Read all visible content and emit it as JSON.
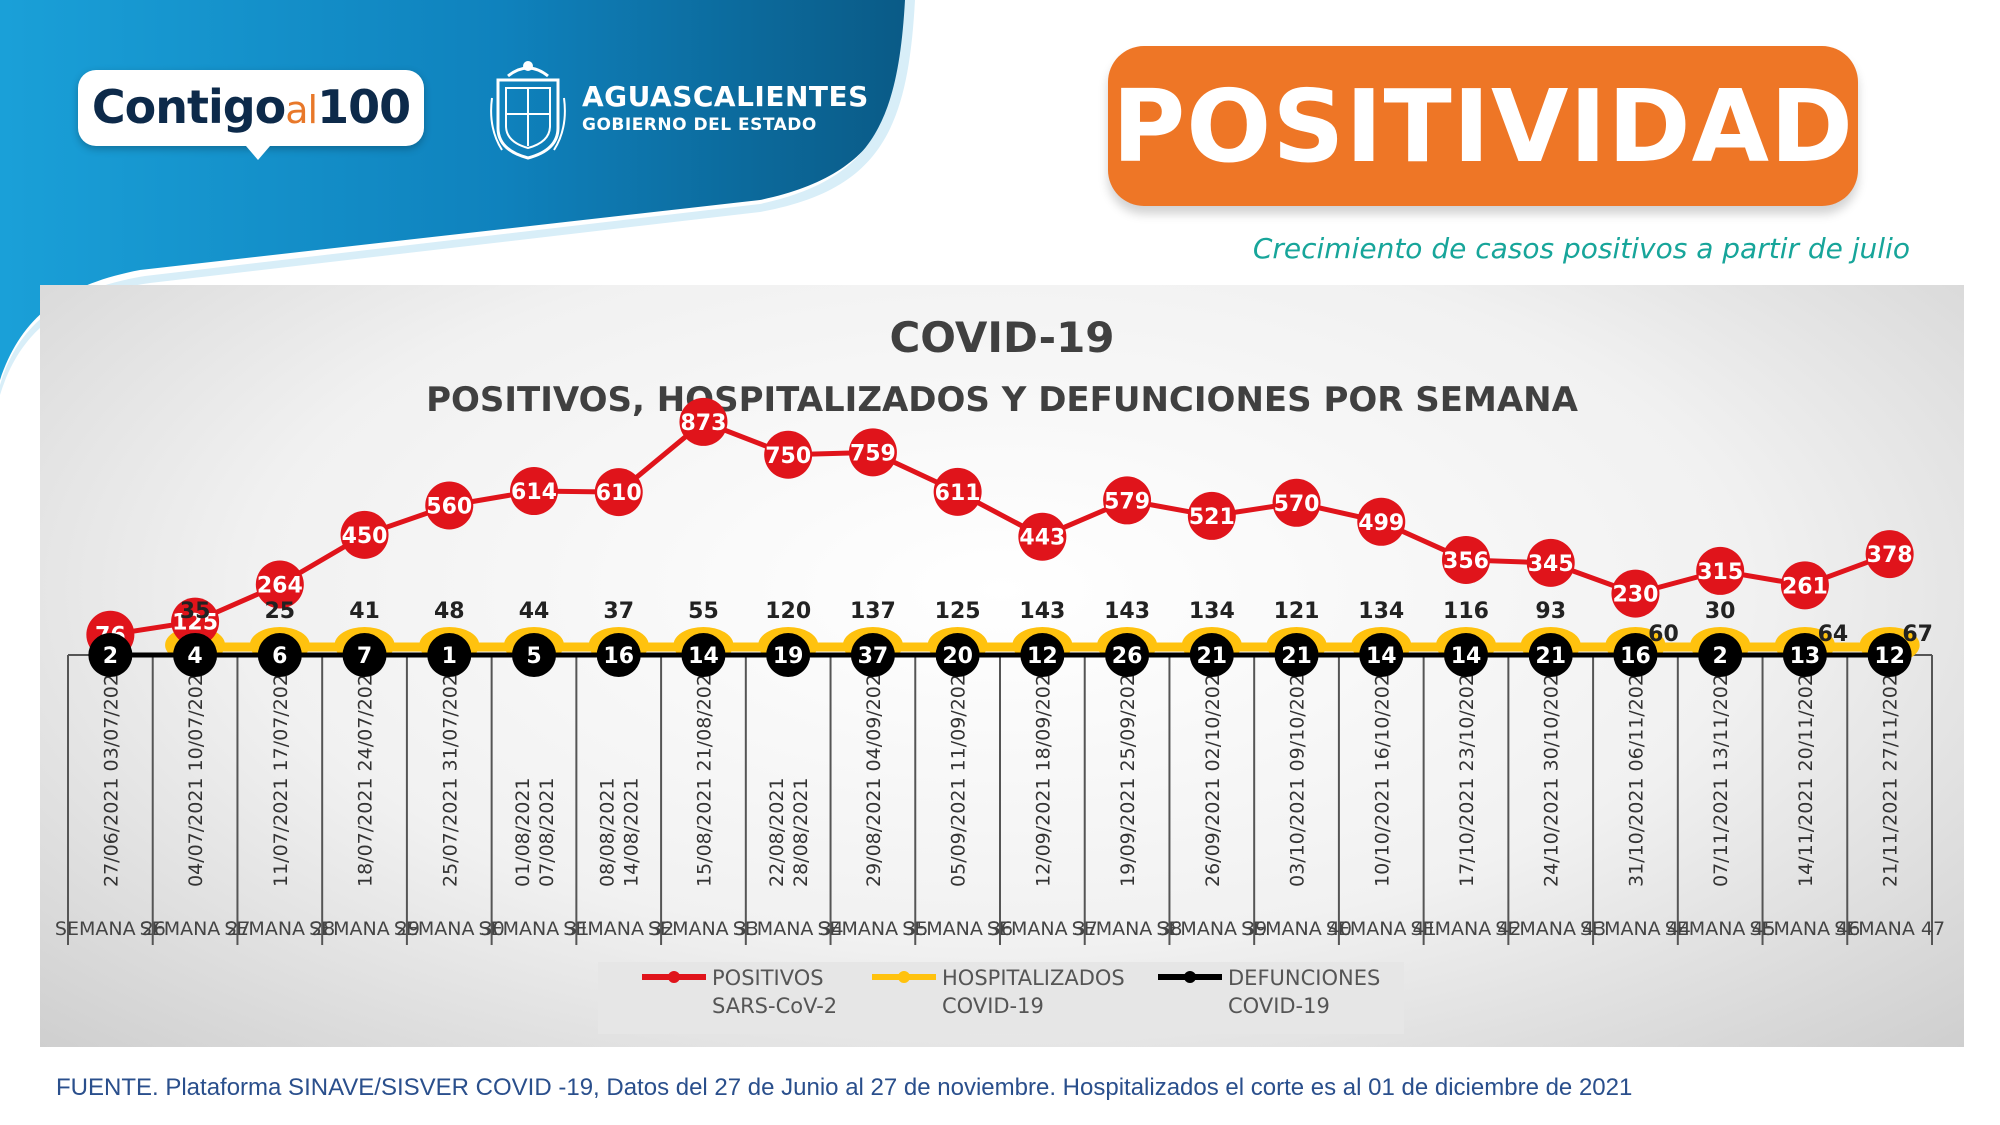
{
  "header": {
    "brand": {
      "word1": "Contigo",
      "word2": "al",
      "word3": "100"
    },
    "government": {
      "name": "AGUASCALIENTES",
      "sub": "GOBIERNO DEL ESTADO"
    },
    "banner_title": "POSITIVIDAD",
    "subtitle": "Crecimiento de casos positivos a partir de julio"
  },
  "colors": {
    "positivos": "#e0141b",
    "hospitalizados": "#ffc20e",
    "defunciones": "#000000",
    "banner": "#ee7626",
    "header_blue": "#0f8cc9",
    "subtitle": "#17a59a",
    "source_text": "#2a4f8c"
  },
  "footer": {
    "source": "FUENTE. Plataforma SINAVE/SISVER COVID -19, Datos del 27 de Junio al 27 de noviembre.  Hospitalizados el corte es al 01 de diciembre de 2021"
  },
  "chart_data": {
    "type": "line",
    "title": "COVID-19",
    "subtitle": "POSITIVOS, HOSPITALIZADOS Y DEFUNCIONES POR SEMANA",
    "categories": [
      {
        "week": "SEMANA 26",
        "dates": [
          "27/06/2021 03/07/2021"
        ]
      },
      {
        "week": "SEMANA 27",
        "dates": [
          "04/07/2021 10/07/2021"
        ]
      },
      {
        "week": "SEMANA 28",
        "dates": [
          "11/07/2021 17/07/2021"
        ]
      },
      {
        "week": "SEMANA 29",
        "dates": [
          "18/07/2021 24/07/2021"
        ]
      },
      {
        "week": "SEMANA 30",
        "dates": [
          "25/07/2021 31/07/2021"
        ]
      },
      {
        "week": "SEMANA 31",
        "dates": [
          "01/08/2021",
          "07/08/2021"
        ]
      },
      {
        "week": "SEMANA 32",
        "dates": [
          "08/08/2021",
          "14/08/2021"
        ]
      },
      {
        "week": "SEMANA 33",
        "dates": [
          "15/08/2021 21/08/2021"
        ]
      },
      {
        "week": "SEMANA 34",
        "dates": [
          "22/08/2021",
          "28/08/2021"
        ]
      },
      {
        "week": "SEMANA 35",
        "dates": [
          "29/08/2021  04/09/2021"
        ]
      },
      {
        "week": "SEMANA 36",
        "dates": [
          "05/09/2021 11/09/2021"
        ]
      },
      {
        "week": "SEMANA 37",
        "dates": [
          "12/09/2021 18/09/2021"
        ]
      },
      {
        "week": "SEMANA 38",
        "dates": [
          "19/09/2021 25/09/2021"
        ]
      },
      {
        "week": "SEMANA 39",
        "dates": [
          "26/09/2021 02/10/2021"
        ]
      },
      {
        "week": "SEMANA 40",
        "dates": [
          "03/10/2021 09/10/2021"
        ]
      },
      {
        "week": "SEMANA 41",
        "dates": [
          "10/10/2021 16/10/2021"
        ]
      },
      {
        "week": "SEMANA 42",
        "dates": [
          "17/10/2021 23/10/2021"
        ]
      },
      {
        "week": "SEMANA 43",
        "dates": [
          "24/10/2021 30/10/2021"
        ]
      },
      {
        "week": "SEMANA 44",
        "dates": [
          "31/10/2021 06/11/2021"
        ]
      },
      {
        "week": "SEMANA 45",
        "dates": [
          "07/11/2021 13/11/2021"
        ]
      },
      {
        "week": "SEMANA 46",
        "dates": [
          "14/11/2021 20/11/2021"
        ]
      },
      {
        "week": "SEMANA 47",
        "dates": [
          "21/11/2021 27/11/2021"
        ]
      }
    ],
    "series": [
      {
        "name": "POSITIVOS SARS-CoV-2",
        "legend": [
          "POSITIVOS",
          "SARS-CoV-2"
        ],
        "color": "#e0141b",
        "values": [
          76,
          125,
          264,
          450,
          560,
          614,
          610,
          873,
          750,
          759,
          611,
          443,
          579,
          521,
          570,
          499,
          356,
          345,
          230,
          315,
          261,
          378
        ]
      },
      {
        "name": "HOSPITALIZADOS COVID-19",
        "legend": [
          "HOSPITALIZADOS",
          "COVID-19"
        ],
        "color": "#ffc20e",
        "values": [
          null,
          35,
          25,
          41,
          48,
          44,
          37,
          55,
          120,
          137,
          125,
          143,
          143,
          134,
          121,
          134,
          116,
          93,
          60,
          30,
          64,
          67
        ]
      },
      {
        "name": "DEFUNCIONES COVID-19",
        "legend": [
          "DEFUNCIONES",
          "COVID-19"
        ],
        "color": "#000000",
        "values": [
          2,
          4,
          6,
          7,
          1,
          5,
          16,
          14,
          19,
          37,
          20,
          12,
          26,
          21,
          21,
          14,
          14,
          21,
          16,
          2,
          13,
          12
        ]
      }
    ],
    "legend_position": "bottom-center",
    "grid": false
  }
}
